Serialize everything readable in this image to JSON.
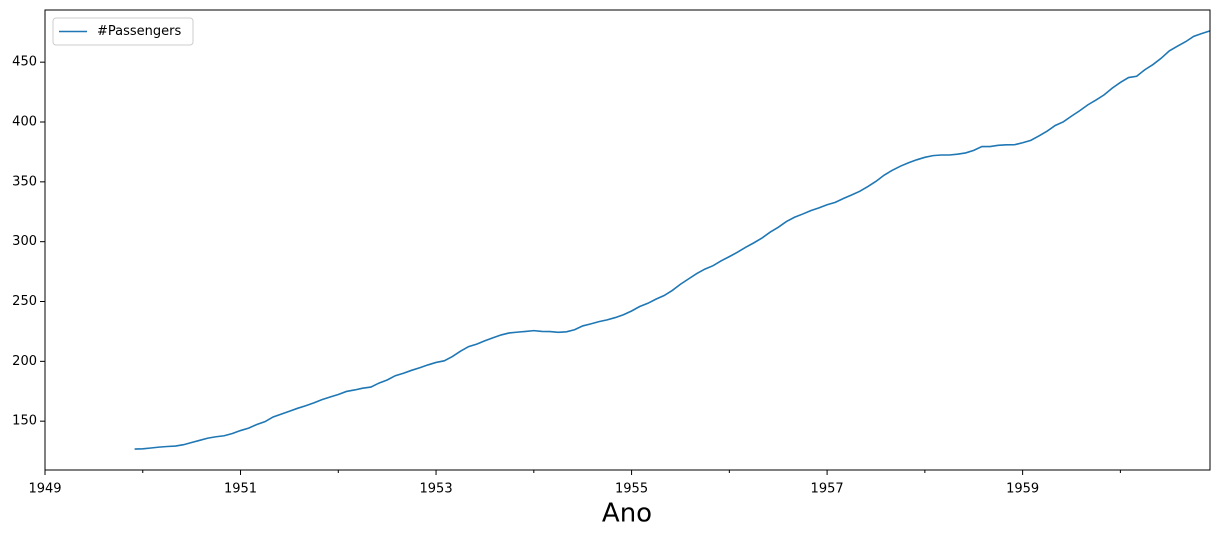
{
  "chart_data": {
    "type": "line",
    "x_label": "Ano",
    "x": [
      "1949-12",
      "1950-01",
      "1950-02",
      "1950-03",
      "1950-04",
      "1950-05",
      "1950-06",
      "1950-07",
      "1950-08",
      "1950-09",
      "1950-10",
      "1950-11",
      "1950-12",
      "1951-01",
      "1951-02",
      "1951-03",
      "1951-04",
      "1951-05",
      "1951-06",
      "1951-07",
      "1951-08",
      "1951-09",
      "1951-10",
      "1951-11",
      "1951-12",
      "1952-01",
      "1952-02",
      "1952-03",
      "1952-04",
      "1952-05",
      "1952-06",
      "1952-07",
      "1952-08",
      "1952-09",
      "1952-10",
      "1952-11",
      "1952-12",
      "1953-01",
      "1953-02",
      "1953-03",
      "1953-04",
      "1953-05",
      "1953-06",
      "1953-07",
      "1953-08",
      "1953-09",
      "1953-10",
      "1953-11",
      "1953-12",
      "1954-01",
      "1954-02",
      "1954-03",
      "1954-04",
      "1954-05",
      "1954-06",
      "1954-07",
      "1954-08",
      "1954-09",
      "1954-10",
      "1954-11",
      "1954-12",
      "1955-01",
      "1955-02",
      "1955-03",
      "1955-04",
      "1955-05",
      "1955-06",
      "1955-07",
      "1955-08",
      "1955-09",
      "1955-10",
      "1955-11",
      "1955-12",
      "1956-01",
      "1956-02",
      "1956-03",
      "1956-04",
      "1956-05",
      "1956-06",
      "1956-07",
      "1956-08",
      "1956-09",
      "1956-10",
      "1956-11",
      "1956-12",
      "1957-01",
      "1957-02",
      "1957-03",
      "1957-04",
      "1957-05",
      "1957-06",
      "1957-07",
      "1957-08",
      "1957-09",
      "1957-10",
      "1957-11",
      "1957-12",
      "1958-01",
      "1958-02",
      "1958-03",
      "1958-04",
      "1958-05",
      "1958-06",
      "1958-07",
      "1958-08",
      "1958-09",
      "1958-10",
      "1958-11",
      "1958-12",
      "1959-01",
      "1959-02",
      "1959-03",
      "1959-04",
      "1959-05",
      "1959-06",
      "1959-07",
      "1959-08",
      "1959-09",
      "1959-10",
      "1959-11",
      "1959-12",
      "1960-01",
      "1960-02",
      "1960-03",
      "1960-04",
      "1960-05",
      "1960-06",
      "1960-07",
      "1960-08",
      "1960-09",
      "1960-10",
      "1960-11",
      "1960-12"
    ],
    "series": [
      {
        "name": "#Passengers",
        "color": "#1f77b4",
        "values": [
          126.67,
          126.92,
          127.58,
          128.33,
          128.83,
          129.17,
          130.33,
          132.17,
          134.0,
          135.83,
          137.0,
          137.83,
          139.67,
          142.17,
          144.17,
          147.25,
          149.58,
          153.5,
          155.92,
          158.33,
          160.75,
          162.92,
          165.33,
          168.0,
          170.17,
          172.33,
          174.83,
          176.08,
          177.58,
          178.5,
          181.83,
          184.42,
          188.0,
          190.08,
          192.5,
          194.67,
          197.0,
          199.08,
          200.42,
          204.0,
          208.5,
          212.33,
          214.42,
          217.25,
          219.75,
          222.08,
          223.75,
          224.42,
          225.0,
          225.67,
          225.0,
          224.92,
          224.25,
          224.67,
          226.42,
          229.58,
          231.33,
          233.17,
          234.67,
          236.58,
          238.92,
          242.08,
          245.83,
          248.5,
          252.0,
          255.0,
          259.25,
          264.42,
          268.92,
          273.33,
          277.08,
          279.92,
          284.0,
          287.5,
          291.17,
          295.33,
          299.0,
          303.0,
          307.92,
          312.0,
          316.83,
          320.42,
          323.08,
          325.92,
          328.25,
          330.83,
          332.83,
          336.08,
          339.0,
          342.08,
          346.08,
          350.42,
          355.58,
          359.67,
          363.08,
          365.92,
          368.42,
          370.5,
          371.92,
          372.42,
          372.42,
          373.08,
          374.17,
          376.33,
          379.5,
          379.5,
          380.5,
          380.92,
          381.0,
          382.67,
          384.67,
          388.33,
          392.33,
          397.08,
          400.17,
          404.92,
          409.42,
          414.33,
          418.33,
          422.67,
          428.33,
          433.08,
          437.17,
          438.25,
          443.67,
          448.0,
          453.25,
          459.42,
          463.33,
          467.08,
          471.58,
          473.92,
          476.17
        ]
      }
    ],
    "xlim": [
      "1949-01",
      "1960-12"
    ],
    "xticks": [
      {
        "value": "1949-01",
        "label": "1949"
      },
      {
        "value": "1951-01",
        "label": "1951"
      },
      {
        "value": "1953-01",
        "label": "1953"
      },
      {
        "value": "1955-01",
        "label": "1955"
      },
      {
        "value": "1957-01",
        "label": "1957"
      },
      {
        "value": "1959-01",
        "label": "1959"
      }
    ],
    "xticks_minor": [
      "1950-01",
      "1952-01",
      "1954-01",
      "1956-01",
      "1958-01",
      "1960-01"
    ],
    "ylim": [
      109.2,
      493.6
    ],
    "yticks": [
      150,
      200,
      250,
      300,
      350,
      400,
      450
    ],
    "legend": "upper left"
  }
}
